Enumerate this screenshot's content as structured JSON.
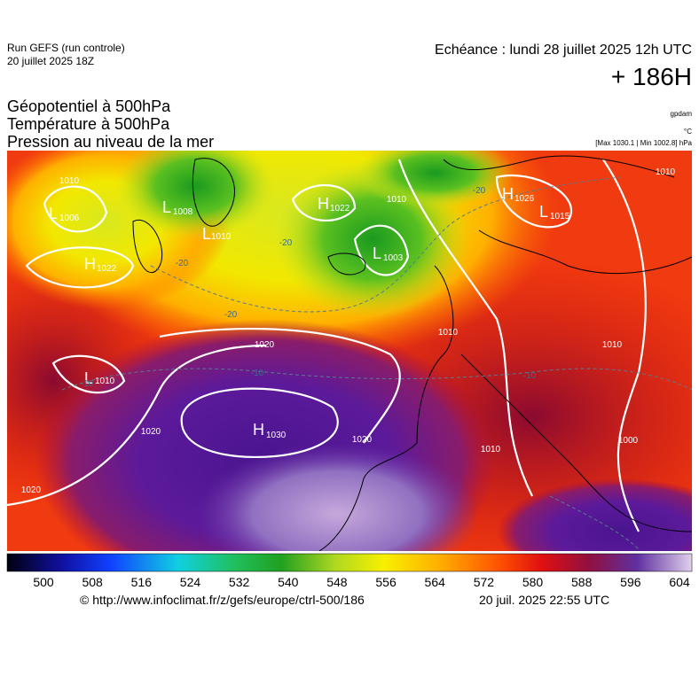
{
  "header": {
    "run": "Run GEFS (run controle)",
    "run_date": "20 juillet 2025 18Z",
    "valid": "Echéance : lundi 28 juillet 2025 12h UTC",
    "lead": "+ 186H",
    "titles": [
      "Géopotentiel à 500hPa",
      "Température à 500hPa",
      "Pression au niveau de la mer"
    ],
    "unit_geo": "gpdam",
    "unit_temp": "°C",
    "pressure_range": "[Max 1030.1 | Min 1002.8] hPa"
  },
  "map": {
    "centers": [
      {
        "type": "L",
        "value": 1006
      },
      {
        "type": "L",
        "value": 1008
      },
      {
        "type": "H",
        "value": 1022
      },
      {
        "type": "L",
        "value": 1010
      },
      {
        "type": "L",
        "value": 1003
      },
      {
        "type": "H",
        "value": 1026
      },
      {
        "type": "L",
        "value": 1015
      },
      {
        "type": "H",
        "value": 1022
      },
      {
        "type": "L",
        "value": 1010
      },
      {
        "type": "H",
        "value": 1030
      }
    ],
    "isobar_labels": [
      1010,
      1020,
      1020,
      1020,
      1010,
      1010,
      1010,
      1000,
      1010,
      1020,
      1010
    ],
    "temperature_labels": [
      -20,
      -20,
      -20,
      -20,
      -10,
      -10,
      -10
    ]
  },
  "colorbar": {
    "ticks": [
      500,
      508,
      516,
      524,
      532,
      540,
      548,
      556,
      564,
      572,
      580,
      588,
      596,
      604
    ]
  },
  "footer": {
    "source": "© http://www.infoclimat.fr/z/gefs/europe/ctrl-500/186",
    "generated": "20 juil. 2025 22:55 UTC"
  }
}
